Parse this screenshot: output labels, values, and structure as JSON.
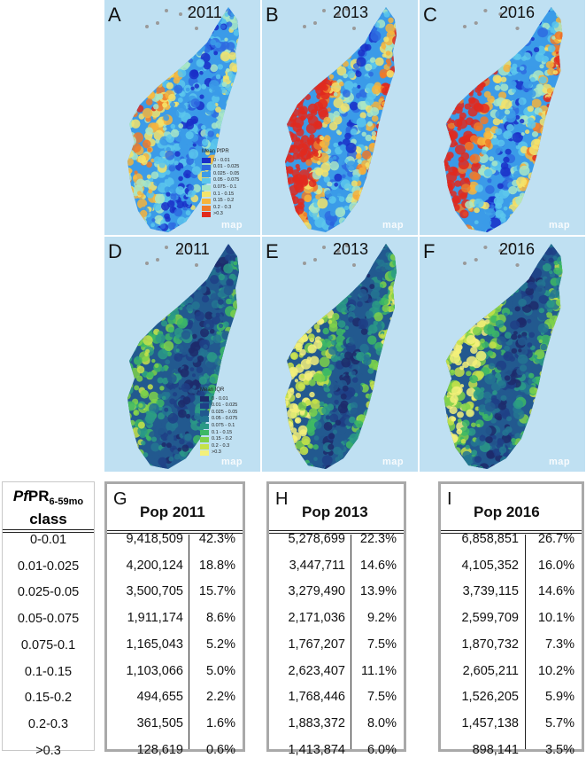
{
  "maps": {
    "A": {
      "letter": "A",
      "year": "2011"
    },
    "B": {
      "letter": "B",
      "year": "2013"
    },
    "C": {
      "letter": "C",
      "year": "2016"
    },
    "D": {
      "letter": "D",
      "year": "2011"
    },
    "E": {
      "letter": "E",
      "year": "2013"
    },
    "F": {
      "letter": "F",
      "year": "2016"
    }
  },
  "map_logo": "map",
  "legend_pfpr": {
    "title": "Mean PfPR",
    "items": [
      "0 - 0.01",
      "0.01 - 0.025",
      "0.025 - 0.05",
      "0.05 - 0.075",
      "0.075 - 0.1",
      "0.1 - 0.15",
      "0.15 - 0.2",
      "0.2 - 0.3",
      ">0.3"
    ],
    "colors": [
      "#1a2fc8",
      "#2e6be0",
      "#3b9be8",
      "#5cc7ec",
      "#a9e6c6",
      "#f4e36a",
      "#f6b43c",
      "#ef7a2a",
      "#e12a1e"
    ]
  },
  "legend_iqr": {
    "title": "Mean IQR",
    "items": [
      "0 - 0.01",
      "0.01 - 0.025",
      "0.025 - 0.05",
      "0.05 - 0.075",
      "0.075 - 0.1",
      "0.1 - 0.15",
      "0.15 - 0.2",
      "0.2 - 0.3",
      ">0.3"
    ],
    "colors": [
      "#1d2a6b",
      "#1f3f86",
      "#22598f",
      "#237692",
      "#2a9a86",
      "#3db865",
      "#7ed14a",
      "#c5e24a",
      "#f3f07a"
    ]
  },
  "table": {
    "class_header": {
      "main": "Pf",
      "pr": "PR",
      "sub": "6-59mo",
      "line2": "class"
    },
    "classes": [
      "0-0.01",
      "0.01-0.025",
      "0.025-0.05",
      "0.05-0.075",
      "0.075-0.1",
      "0.1-0.15",
      "0.15-0.2",
      "0.2-0.3",
      ">0.3"
    ],
    "panels": [
      {
        "letter": "G",
        "title": "Pop 2011",
        "counts": [
          "9,418,509",
          "4,200,124",
          "3,500,705",
          "1,911,174",
          "1,165,043",
          "1,103,066",
          "494,655",
          "361,505",
          "128,619"
        ],
        "pcts": [
          "42.3%",
          "18.8%",
          "15.7%",
          "8.6%",
          "5.2%",
          "5.0%",
          "2.2%",
          "1.6%",
          "0.6%"
        ]
      },
      {
        "letter": "H",
        "title": "Pop 2013",
        "counts": [
          "5,278,699",
          "3,447,711",
          "3,279,490",
          "2,171,036",
          "1,767,207",
          "2,623,407",
          "1,768,446",
          "1,883,372",
          "1,413,874"
        ],
        "pcts": [
          "22.3%",
          "14.6%",
          "13.9%",
          "9.2%",
          "7.5%",
          "11.1%",
          "7.5%",
          "8.0%",
          "6.0%"
        ]
      },
      {
        "letter": "I",
        "title": "Pop 2016",
        "counts": [
          "6,858,851",
          "4,105,352",
          "3,739,115",
          "2,599,709",
          "1,870,732",
          "2,605,211",
          "1,526,205",
          "1,457,138",
          "898,141"
        ],
        "pcts": [
          "26.7%",
          "16.0%",
          "14.6%",
          "10.1%",
          "7.3%",
          "10.2%",
          "5.9%",
          "5.7%",
          "3.5%"
        ]
      }
    ]
  }
}
